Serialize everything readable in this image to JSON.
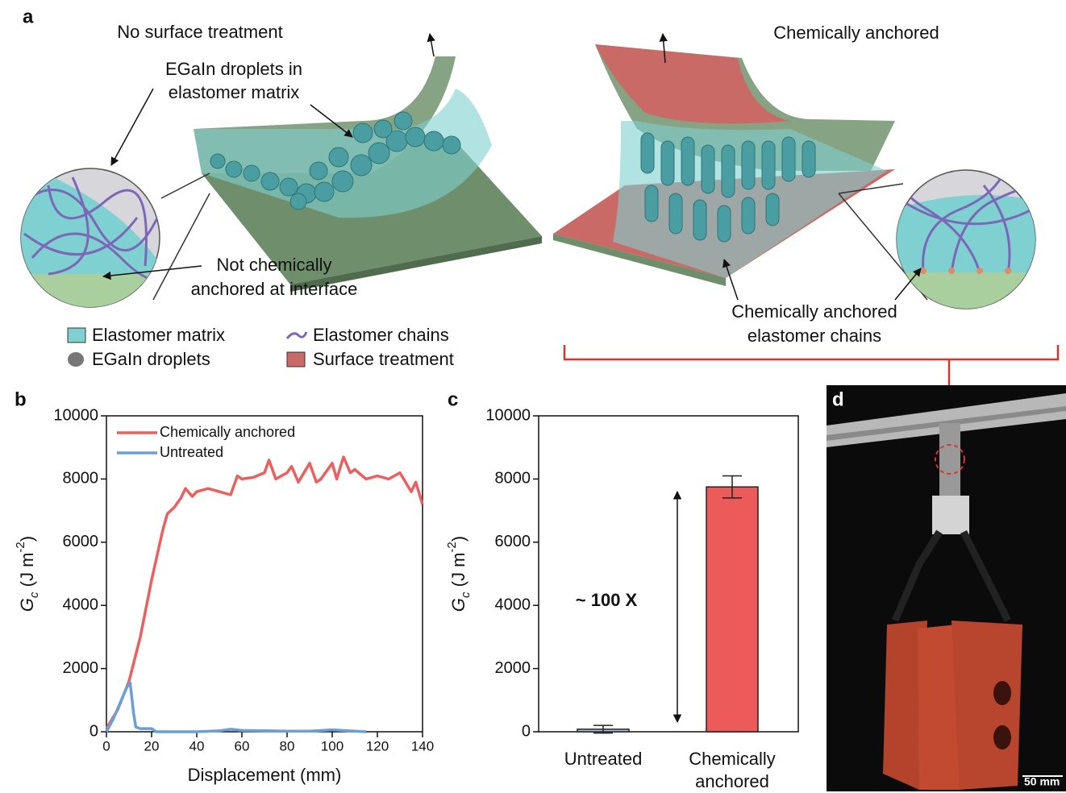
{
  "panel_labels": {
    "a": "a",
    "b": "b",
    "c": "c",
    "d": "d"
  },
  "panel_a": {
    "left_title": "No surface treatment",
    "right_title": "Chemically anchored",
    "droplet_callout": [
      "EGaIn droplets in",
      "elastomer matrix"
    ],
    "interface_callout": [
      "Not chemically",
      "anchored at interface"
    ],
    "anchored_callout": [
      "Chemically anchored",
      "elastomer chains"
    ],
    "legend": [
      "Elastomer matrix",
      "EGaIn droplets",
      "Elastomer chains",
      "Surface treatment"
    ]
  },
  "panel_d": {
    "scale_bar": "50 mm"
  },
  "chart_data": [
    {
      "type": "line",
      "x_label": "Displacement (mm)",
      "y_label": [
        "G",
        "c",
        " (J m",
        "-2",
        ")"
      ],
      "xlim": [
        0,
        140
      ],
      "xticks": [
        0,
        20,
        40,
        60,
        80,
        100,
        120,
        140
      ],
      "ylim": [
        0,
        10000
      ],
      "yticks": [
        0,
        2000,
        4000,
        6000,
        8000,
        10000
      ],
      "series": [
        {
          "name": "Chemically anchored",
          "color": "#ec5f5f",
          "x": [
            0,
            5,
            10,
            15,
            20,
            25,
            27,
            30,
            33,
            35,
            38,
            40,
            45,
            50,
            55,
            58,
            60,
            65,
            70,
            72,
            75,
            80,
            82,
            85,
            90,
            93,
            95,
            100,
            102,
            105,
            108,
            110,
            115,
            120,
            125,
            130,
            135,
            137,
            140
          ],
          "values": [
            100,
            700,
            1600,
            3000,
            4800,
            6400,
            6900,
            7100,
            7400,
            7700,
            7450,
            7600,
            7700,
            7600,
            7500,
            8100,
            8000,
            8050,
            8200,
            8600,
            8000,
            8200,
            8400,
            7900,
            8500,
            7900,
            8000,
            8500,
            8000,
            8700,
            8200,
            8300,
            8000,
            8100,
            8000,
            8200,
            7600,
            7900,
            7200
          ]
        },
        {
          "name": "Untreated",
          "color": "#6a9fd8",
          "x": [
            0,
            3,
            6,
            9,
            10.5,
            12,
            13,
            15,
            20,
            22,
            30,
            40,
            50,
            55,
            60,
            70,
            80,
            90,
            100,
            110,
            115
          ],
          "values": [
            0,
            400,
            900,
            1400,
            1550,
            600,
            150,
            100,
            100,
            0,
            0,
            0,
            30,
            80,
            40,
            30,
            20,
            20,
            60,
            20,
            0
          ]
        }
      ]
    },
    {
      "type": "bar",
      "y_label": [
        "G",
        "c",
        " (J m",
        "-2",
        ")"
      ],
      "categories": [
        "Untreated",
        "Chemically anchored"
      ],
      "values": [
        80,
        7750
      ],
      "errors": [
        120,
        350
      ],
      "colors": [
        "#a9c1de",
        "#ec5a5a"
      ],
      "ylim": [
        0,
        10000
      ],
      "yticks": [
        0,
        2000,
        4000,
        6000,
        8000,
        10000
      ],
      "annotation": "~ 100 X"
    }
  ]
}
